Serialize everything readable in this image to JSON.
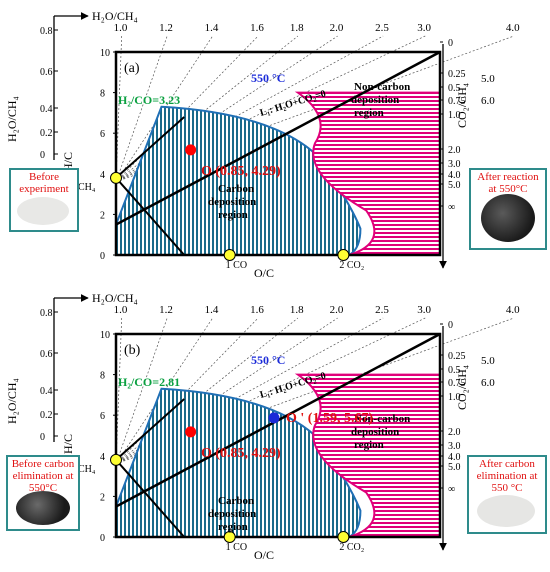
{
  "colors": {
    "red_text": "#e01010",
    "blue_text": "#1a2ad8",
    "green_text": "#0aa040",
    "magenta": "#e0007a",
    "teal": "#1a6a8a",
    "curve_blue": "#1f6fb5",
    "yellow": "#ffff33"
  },
  "top_axis_label": "H₂O/CH₄",
  "top_ticks": [
    "1.0",
    "1.2",
    "1.4",
    "1.6",
    "1.8",
    "2.0",
    "2.5",
    "3.0",
    "4.0"
  ],
  "left_axis_h2o_ch4": {
    "label": "H₂O/CH₄",
    "ticks": [
      "0.8",
      "0.6",
      "0.4",
      "0.2",
      "0"
    ]
  },
  "left_axis_h_c": {
    "label": "H/C",
    "ticks": [
      "10",
      "8",
      "6",
      "4",
      "2",
      "0"
    ]
  },
  "right_axis_co2": {
    "label": "CO₂/CH₄",
    "ticks": [
      "5.0",
      "6.0"
    ]
  },
  "right_axis_scale": [
    "0",
    "0.25",
    "0.5",
    "0.75",
    "1.0",
    "2.0",
    "3.0",
    "4.0",
    "5.0",
    "∞"
  ],
  "x_axis_label": "O/C",
  "ch4_label": "CH₄",
  "co_label": "1 CO",
  "co2_label": "2 CO₂",
  "panels": [
    {
      "tag": "(a)",
      "temp": "550 °C",
      "h2co": "H₂/CO=3.23",
      "line_label": "L₁: H₂O+CO₂=0",
      "point": "O (0.85, 4.29)",
      "carbon_region": [
        "Carbon",
        "deposition",
        "region"
      ],
      "noncarbon_region": [
        "Non-carbon",
        "deposition",
        "region"
      ],
      "left_photo": [
        "Before",
        "experiment"
      ],
      "right_photo": [
        "After reaction",
        "at 550°C"
      ]
    },
    {
      "tag": "(b)",
      "temp": "550 °C",
      "h2co": "H₂/CO=2.81",
      "line_label": "L₁: H₂O+CO₂=0",
      "point": "O (0.85, 4.29)",
      "point2": "O ' (1.59, 5.67)",
      "carbon_region": [
        "Carbon",
        "deposition",
        "region"
      ],
      "noncarbon_region": [
        "Non-carbon",
        "deposition",
        "region"
      ],
      "left_photo": [
        "Before carbon",
        "elimination at",
        "550°C"
      ],
      "right_photo": [
        "After carbon",
        "elimination at",
        "550 °C"
      ]
    }
  ]
}
